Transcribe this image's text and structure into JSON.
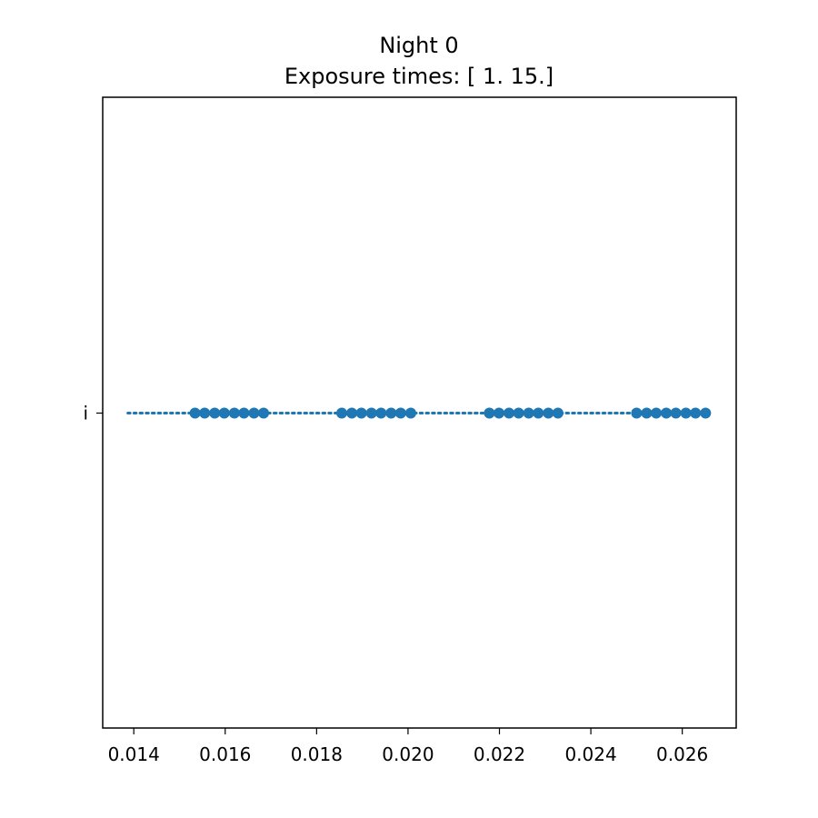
{
  "chart_data": {
    "type": "scatter",
    "title": "Night 0",
    "subtitle": "Exposure times: [ 1. 15.]",
    "xlabel": "",
    "ylabel": "",
    "xlim": [
      0.01332,
      0.02718
    ],
    "xticks": [
      "0.014",
      "0.016",
      "0.018",
      "0.020",
      "0.022",
      "0.024",
      "0.026"
    ],
    "yticks": [
      "i"
    ],
    "grid": false,
    "colors": {
      "series": "#1f77b4"
    },
    "series": [
      {
        "style": "dotted-line",
        "category": "i",
        "x": [
          0.01387,
          0.02652
        ]
      },
      {
        "style": "markers",
        "category": "i",
        "x": [
          0.01534,
          0.01555,
          0.01577,
          0.01598,
          0.0162,
          0.01641,
          0.01663,
          0.01684,
          0.01855,
          0.01877,
          0.01898,
          0.0192,
          0.01941,
          0.01963,
          0.01984,
          0.02006,
          0.02178,
          0.02199,
          0.02221,
          0.02242,
          0.02264,
          0.02285,
          0.02307,
          0.02328,
          0.025,
          0.02522,
          0.02543,
          0.02565,
          0.02586,
          0.02608,
          0.02629,
          0.02651
        ]
      }
    ]
  }
}
